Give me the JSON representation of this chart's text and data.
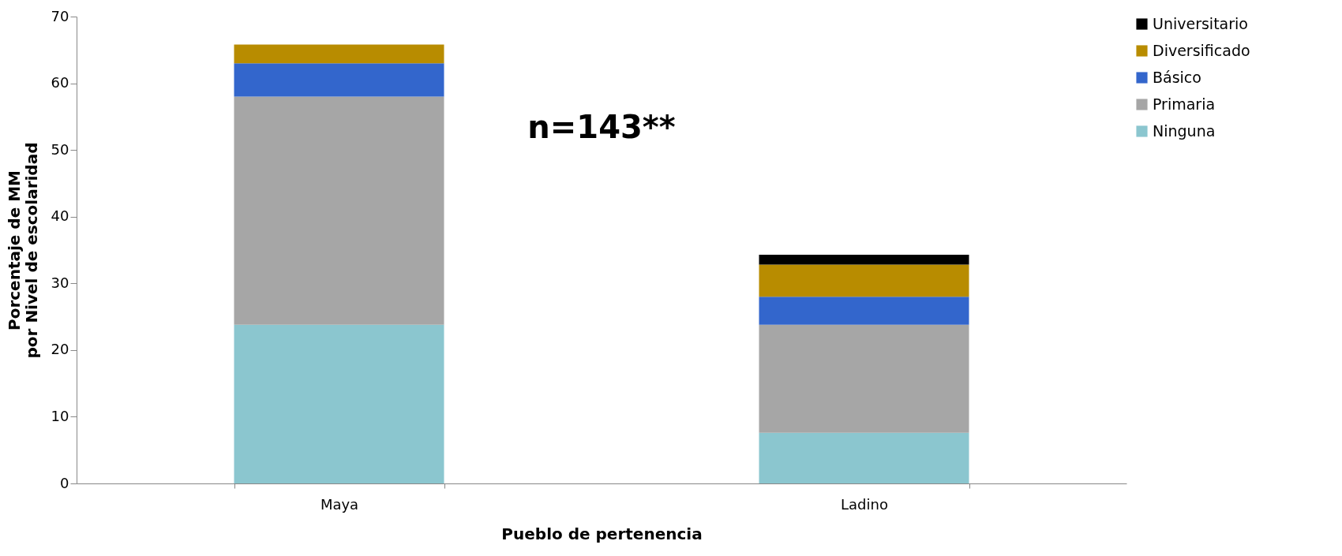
{
  "chart_data": {
    "type": "bar",
    "stacked": true,
    "xlabel": "Pueblo de pertenencia",
    "ylabel": "Porcentaje de  MM\npor Nivel de escolaridad",
    "categories": [
      "Maya",
      "Ladino"
    ],
    "series": [
      {
        "name": "Ninguna",
        "color": "#8bc6cf",
        "values": [
          23.8,
          7.6
        ]
      },
      {
        "name": "Primaria",
        "color": "#a6a6a6",
        "values": [
          34.2,
          16.2
        ]
      },
      {
        "name": "Básico",
        "color": "#3366cc",
        "values": [
          5.0,
          4.2
        ]
      },
      {
        "name": "Diversificado",
        "color": "#b88c00",
        "values": [
          2.8,
          4.8
        ]
      },
      {
        "name": "Universitario",
        "color": "#000000",
        "values": [
          null,
          1.5
        ]
      }
    ],
    "ylim": [
      0,
      70
    ],
    "yticks": [
      0,
      10,
      20,
      30,
      40,
      50,
      60,
      70
    ],
    "grid": false,
    "legend": "right",
    "annotations": [
      "n=143**"
    ]
  }
}
